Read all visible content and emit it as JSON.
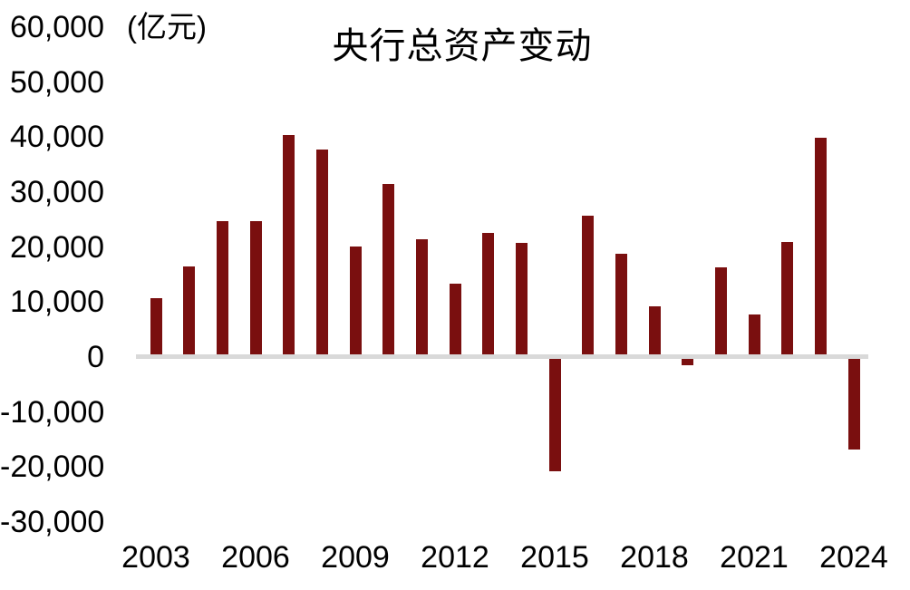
{
  "chart_data": {
    "type": "bar",
    "title": "央行总资产变动",
    "unit": "(亿元)",
    "categories": [
      "2003",
      "2004",
      "2005",
      "2006",
      "2007",
      "2008",
      "2009",
      "2010",
      "2011",
      "2012",
      "2013",
      "2014",
      "2015",
      "2016",
      "2017",
      "2018",
      "2019",
      "2020",
      "2021",
      "2022",
      "2023",
      "2024"
    ],
    "values": [
      10700,
      16500,
      24700,
      24700,
      40400,
      37700,
      20100,
      31500,
      21400,
      13400,
      22500,
      20800,
      -20800,
      25700,
      18800,
      9200,
      -1500,
      16300,
      7800,
      21000,
      39900,
      -16800
    ],
    "x_tick_labels": [
      "2003",
      "2006",
      "2009",
      "2012",
      "2015",
      "2018",
      "2021",
      "2024"
    ],
    "y_ticks": [
      60000,
      50000,
      40000,
      30000,
      20000,
      10000,
      0,
      -10000,
      -20000,
      -30000
    ],
    "y_tick_labels": [
      "60,000",
      "50,000",
      "40,000",
      "30,000",
      "20,000",
      "10,000",
      "0",
      "-10,000",
      "-20,000",
      "-30,000"
    ],
    "ylim": [
      -30000,
      60000
    ],
    "xlabel": "",
    "ylabel": "亿元",
    "bar_color": "#7A0F0F",
    "axis_line_color": "#D9D9D9",
    "grid": false,
    "legend": false
  }
}
